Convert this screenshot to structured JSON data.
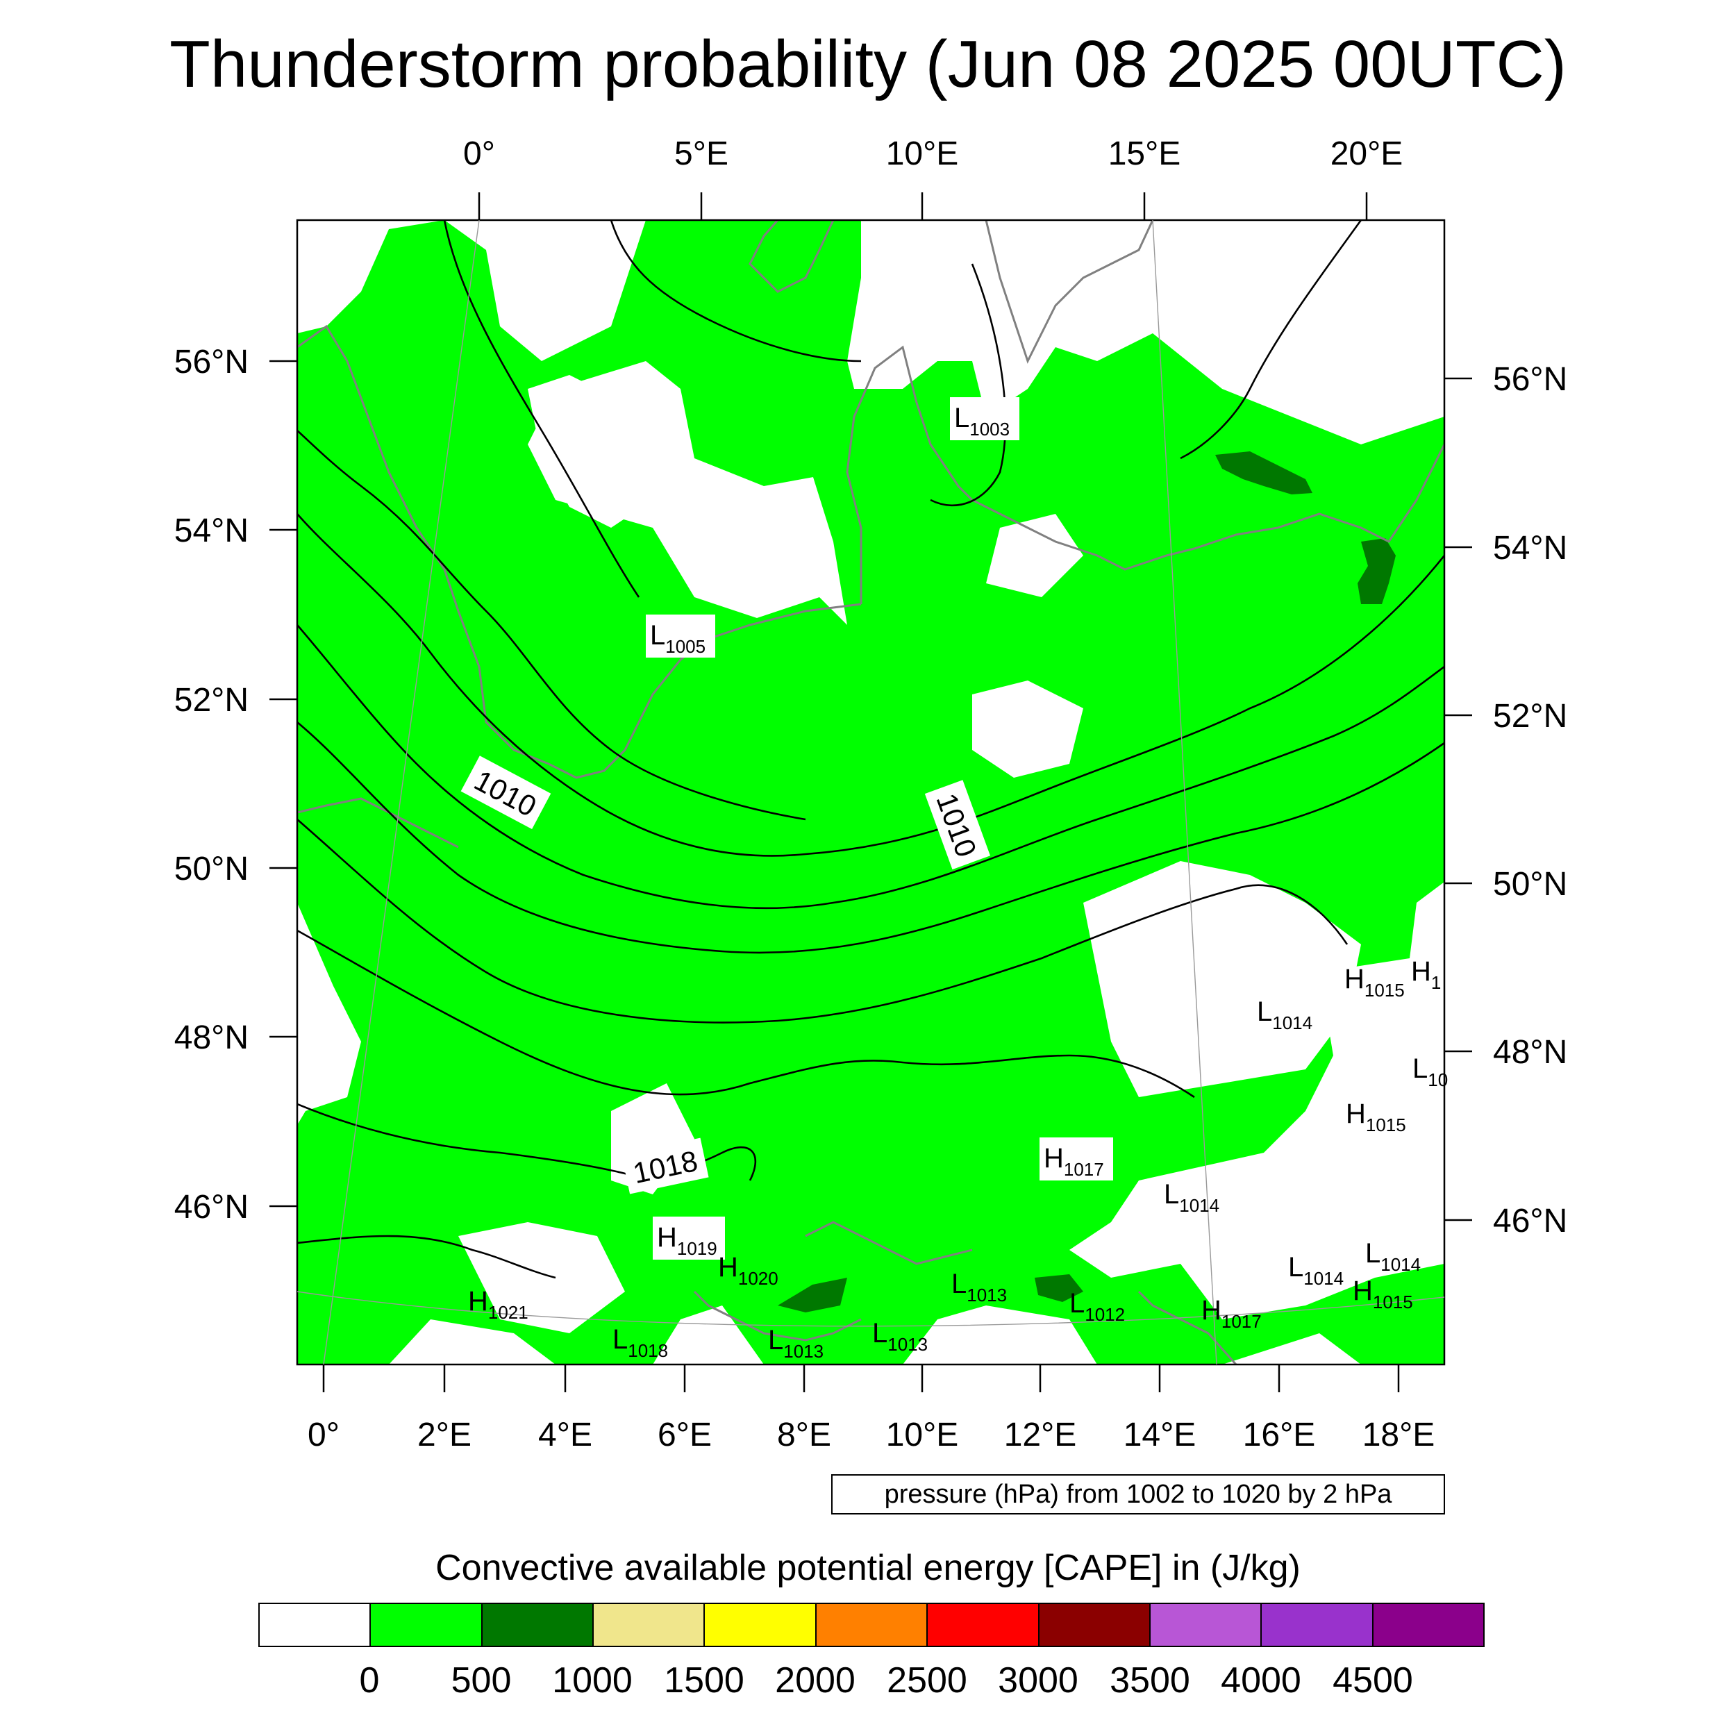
{
  "title": "Thunderstorm probability (Jun 08 2025 00UTC)",
  "axes": {
    "top_lon": [
      "0°",
      "5°E",
      "10°E",
      "15°E",
      "20°E"
    ],
    "bottom_lon": [
      "0°",
      "2°E",
      "4°E",
      "6°E",
      "8°E",
      "10°E",
      "12°E",
      "14°E",
      "16°E",
      "18°E"
    ],
    "left_lat": [
      "56°N",
      "54°N",
      "52°N",
      "50°N",
      "48°N",
      "46°N"
    ],
    "right_lat": [
      "56°N",
      "54°N",
      "52°N",
      "50°N",
      "48°N",
      "46°N"
    ]
  },
  "pressure_systems": [
    {
      "type": "L",
      "value": "1003"
    },
    {
      "type": "L",
      "value": "1005"
    },
    {
      "type": "H",
      "value": "1015"
    },
    {
      "type": "H",
      "value": "1"
    },
    {
      "type": "L",
      "value": "1014"
    },
    {
      "type": "L",
      "value": "10"
    },
    {
      "type": "H",
      "value": "1015"
    },
    {
      "type": "H",
      "value": "1017"
    },
    {
      "type": "L",
      "value": "1014"
    },
    {
      "type": "H",
      "value": "1019"
    },
    {
      "type": "H",
      "value": "1020"
    },
    {
      "type": "H",
      "value": "1021"
    },
    {
      "type": "L",
      "value": "1018"
    },
    {
      "type": "L",
      "value": "1013"
    },
    {
      "type": "L",
      "value": "1013"
    },
    {
      "type": "L",
      "value": "1013"
    },
    {
      "type": "L",
      "value": "1012"
    },
    {
      "type": "H",
      "value": "1017"
    },
    {
      "type": "L",
      "value": "1014"
    },
    {
      "type": "L",
      "value": "1014"
    },
    {
      "type": "H",
      "value": "1015"
    }
  ],
  "isobar_labels": [
    "1010",
    "1010",
    "1018"
  ],
  "contour_note": "pressure (hPa) from 1002 to 1020 by 2 hPa",
  "legend": {
    "title": "Convective available potential energy [CAPE] in (J/kg)",
    "colors": [
      "#ffffff",
      "#00ff00",
      "#007800",
      "#f0e68c",
      "#ffff00",
      "#ff8000",
      "#ff0000",
      "#8b0000",
      "#b856d6",
      "#9932cc",
      "#8b008b"
    ],
    "labels": [
      "0",
      "500",
      "1000",
      "1500",
      "2000",
      "2500",
      "3000",
      "3500",
      "4000",
      "4500"
    ]
  },
  "colors": {
    "cape_0_500": "#00ff00",
    "cape_500_1000": "#007800",
    "coast": "#808080",
    "isobar": "#000000"
  }
}
